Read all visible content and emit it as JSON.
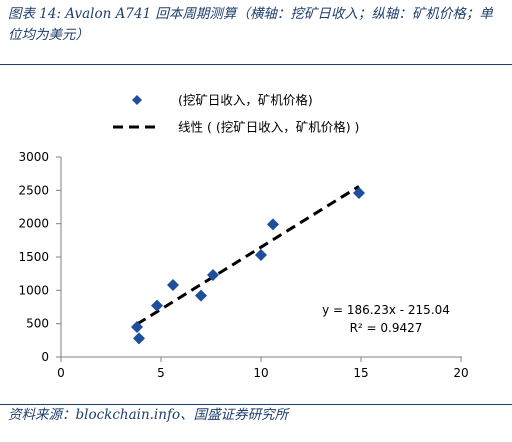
{
  "header": {
    "title": "图表 14: Avalon A741 回本周期测算（横轴：挖矿日收入；纵轴：矿机价格；单位均为美元）"
  },
  "footer": {
    "source": "资料来源：blockchain.info、国盛证券研究所"
  },
  "colors": {
    "accent": "#1f3f6e",
    "marker": "#1f4e9c",
    "trend": "#000000"
  },
  "chart_data": {
    "type": "scatter",
    "title": "",
    "xlabel": "",
    "ylabel": "",
    "xlim": [
      0,
      20
    ],
    "ylim": [
      0,
      3000
    ],
    "xticks": [
      0,
      5,
      10,
      15,
      20
    ],
    "yticks": [
      0,
      500,
      1000,
      1500,
      2000,
      2500,
      3000
    ],
    "grid": false,
    "legend_position": "top",
    "series": [
      {
        "name": "(挖矿日收入，矿机价格)",
        "marker": "diamond",
        "points": [
          {
            "x": 3.8,
            "y": 450
          },
          {
            "x": 3.9,
            "y": 280
          },
          {
            "x": 4.8,
            "y": 770
          },
          {
            "x": 5.6,
            "y": 1080
          },
          {
            "x": 7.0,
            "y": 920
          },
          {
            "x": 7.6,
            "y": 1230
          },
          {
            "x": 10.0,
            "y": 1530
          },
          {
            "x": 10.6,
            "y": 1990
          },
          {
            "x": 14.9,
            "y": 2460
          }
        ]
      }
    ],
    "trendline": {
      "name": "线性 ( (挖矿日收入，矿机价格) )",
      "slope": 186.23,
      "intercept": -215.04,
      "x_range": [
        3.8,
        14.9
      ],
      "equation": "y = 186.23x - 215.04",
      "r2": "R² = 0.9427"
    }
  }
}
